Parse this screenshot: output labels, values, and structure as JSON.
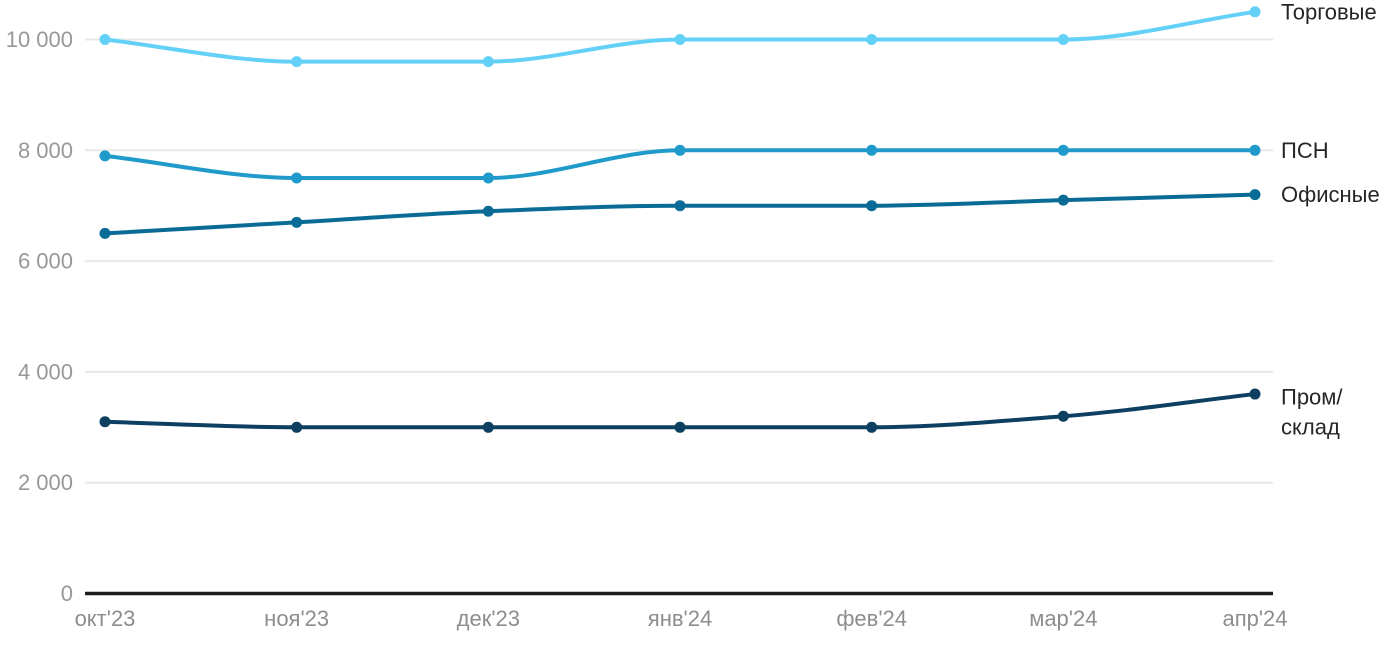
{
  "chart_data": {
    "type": "line",
    "title": "",
    "xlabel": "",
    "ylabel": "",
    "x_labels": [
      "окт'23",
      "ноя'23",
      "дек'23",
      "янв'24",
      "фев'24",
      "мар'24",
      "апр'24"
    ],
    "y_ticks": [
      {
        "value": 0,
        "label": "0"
      },
      {
        "value": 2000,
        "label": "2 000"
      },
      {
        "value": 4000,
        "label": "4 000"
      },
      {
        "value": 6000,
        "label": "6 000"
      },
      {
        "value": 8000,
        "label": "8 000"
      },
      {
        "value": 10000,
        "label": "10 000"
      }
    ],
    "ylim": [
      0,
      10500
    ],
    "grid": "horizontal",
    "legend_position": "right-of-line-end",
    "series": [
      {
        "id": "torgovye",
        "name": "Торговые",
        "label_lines": [
          "Торговые"
        ],
        "color": "#63d1f7",
        "values": [
          10000,
          9600,
          9600,
          10000,
          10000,
          10000,
          10500
        ]
      },
      {
        "id": "psn",
        "name": "ПСН",
        "label_lines": [
          "ПСН"
        ],
        "color": "#1f9aca",
        "values": [
          7900,
          7500,
          7500,
          8000,
          8000,
          8000,
          8000
        ]
      },
      {
        "id": "ofisnye",
        "name": "Офисные",
        "label_lines": [
          "Офисные"
        ],
        "color": "#0a6c96",
        "values": [
          6500,
          6700,
          6900,
          7000,
          7000,
          7100,
          7200
        ]
      },
      {
        "id": "prom-sklad",
        "name": "Пром/склад",
        "label_lines": [
          "Пром/",
          "склад"
        ],
        "color": "#0d3f61",
        "values": [
          3100,
          3000,
          3000,
          3000,
          3000,
          3200,
          3600
        ]
      }
    ],
    "colors": {
      "background": "#ffffff",
      "gridline": "#e8e8e8",
      "axis_line": "#1d1d1d",
      "tick_text": "#989898",
      "series_label_text": "#262626"
    }
  }
}
